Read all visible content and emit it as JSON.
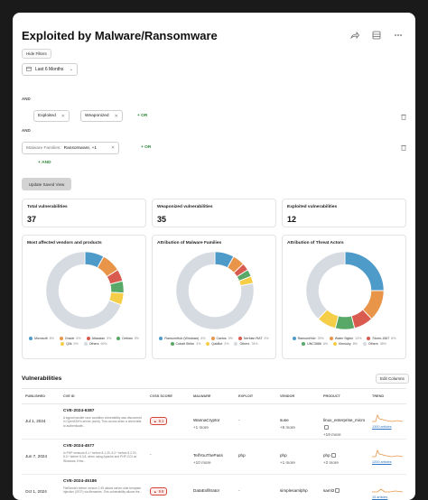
{
  "title": "Exploited by Malware/Ransomware",
  "header_icons": [
    "share-icon",
    "dashboard-icon",
    "more-icon"
  ],
  "filters": {
    "hide_filters": "Hide Filters",
    "date_range": "Last 6 Months",
    "and_label": "AND",
    "chips": [
      "Exploited",
      "Weaponized"
    ],
    "or_label": "OR",
    "malware_families_label": "Malware Families:",
    "malware_families_value": "Ransomware, +1",
    "add_and": "AND",
    "update_btn": "Update Saved View"
  },
  "stats": [
    {
      "label": "Total vulnerabilities",
      "value": "37"
    },
    {
      "label": "Weaponized vulnerabilities",
      "value": "35"
    },
    {
      "label": "Exploited vulnerabilities",
      "value": "12"
    }
  ],
  "charts": [
    {
      "title": "Most affected vendors and products",
      "legend": [
        {
          "name": "Microsoft",
          "pct": "8%",
          "color": "#4e9bc9"
        },
        {
          "name": "Oracle",
          "pct": "8%",
          "color": "#e8954a"
        },
        {
          "name": "Atlassian",
          "pct": "5%",
          "color": "#d95a4f"
        },
        {
          "name": "Debian",
          "pct": "5%",
          "color": "#58a867"
        },
        {
          "name": "Qlik",
          "pct": "5%",
          "color": "#f5cd47"
        },
        {
          "name": "Others",
          "pct": "69%",
          "color": "#d5dbe1"
        }
      ]
    },
    {
      "title": "Attribution of Malware Families",
      "legend": [
        {
          "name": "RansomHub (Windows)",
          "pct": "8%",
          "color": "#4e9bc9"
        },
        {
          "name": "Cactus",
          "pct": "5%",
          "color": "#e8954a"
        },
        {
          "name": "Nerbian RAT",
          "pct": "3%",
          "color": "#d95a4f"
        },
        {
          "name": "Cobalt Strike",
          "pct": "3%",
          "color": "#58a867"
        },
        {
          "name": "QakBot",
          "pct": "3%",
          "color": "#f5cd47"
        },
        {
          "name": "Others",
          "pct": "78%",
          "color": "#d5dbe1"
        }
      ]
    },
    {
      "title": "Attribution of Threat Actors",
      "legend": [
        {
          "name": "RansomHub",
          "pct": "25%",
          "color": "#4e9bc9"
        },
        {
          "name": "Water Sigbin",
          "pct": "13%",
          "color": "#e8954a"
        },
        {
          "name": "Storm-1567",
          "pct": "8%",
          "color": "#d95a4f"
        },
        {
          "name": "UNC3886",
          "pct": "8%",
          "color": "#58a867"
        },
        {
          "name": "Kimsuky",
          "pct": "8%",
          "color": "#f5cd47"
        },
        {
          "name": "Others",
          "pct": "38%",
          "color": "#d5dbe1"
        }
      ]
    }
  ],
  "vulnerabilities": {
    "title": "Vulnerabilities",
    "edit_columns": "Edit Columns",
    "columns": [
      "PUBLISHED",
      "CVE ID",
      "CVSS SCORE",
      "MALWARE",
      "EXPLOIT",
      "VENDOR",
      "PRODUCT",
      "TREND"
    ],
    "rows": [
      {
        "published": "Jul 1, 2024",
        "cve": "CVE-2024-6387",
        "desc": "A signal handler race condition vulnerability was discovered in OpenSSH's server (sshd). This occurs when a client fails to authenticate...",
        "cvss": "8.1",
        "malware": "WannaCryptor",
        "malware_more": "+1 more",
        "exploit": "-",
        "vendor": "suse",
        "vendor_more": "+8 more",
        "product": "linux_enterprise_micro",
        "product_more": "+19 more",
        "trend": "1300 articles"
      },
      {
        "published": "Jun 7, 2024",
        "cve": "CVE-2024-4577",
        "desc": "In PHP versions 8.1.* before 8.1.29, 8.2.* before 8.2.20, 8.3.* before 8.3.8, when using Apache and PHP-CGI on Windows, if the...",
        "cvss": "-",
        "malware": "TellYouThePass",
        "malware_more": "+10 more",
        "exploit": "php",
        "vendor": "php",
        "vendor_more": "+1 more",
        "product": "php",
        "product_more": "+2 more",
        "trend": "1200 articles"
      },
      {
        "published": "Oct 1, 2024",
        "cve": "CVE-2024-45186",
        "desc": "FileSender before version 2.49 allows server-side template injection (SSTI) via filenames. This vulnerability allows the...",
        "cvss": "9.8",
        "malware": "DataExfiltrator",
        "malware_more": "",
        "exploit": "-",
        "vendor": "simplesamlphp",
        "vendor_more": "",
        "product": "saml2",
        "product_more": "",
        "trend": "15 articles"
      }
    ]
  }
}
